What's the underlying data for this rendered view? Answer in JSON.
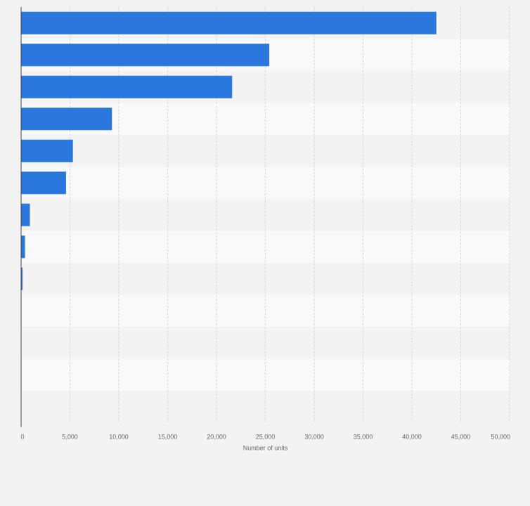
{
  "chart_data": {
    "type": "bar",
    "orientation": "horizontal",
    "title": "",
    "xlabel": "Number of units",
    "ylabel": "",
    "categories": [
      "",
      "",
      "",
      "",
      "",
      "",
      "",
      "",
      "",
      "",
      "",
      "",
      ""
    ],
    "values": [
      42500,
      25400,
      21600,
      9300,
      5300,
      4600,
      900,
      400,
      150,
      0,
      0,
      0,
      0
    ],
    "xlim": [
      0,
      50000
    ],
    "x_ticks": [
      "0",
      "5,000",
      "10,000",
      "15,000",
      "20,000",
      "25,000",
      "30,000",
      "35,000",
      "40,000",
      "45,000",
      "50,000"
    ],
    "grid": true,
    "bar_color": "#2a78de",
    "band_colors": [
      "#f3f3f3",
      "#f9f9f9"
    ],
    "grid_color": "#d7d7d7",
    "axis_color": "#444444"
  }
}
